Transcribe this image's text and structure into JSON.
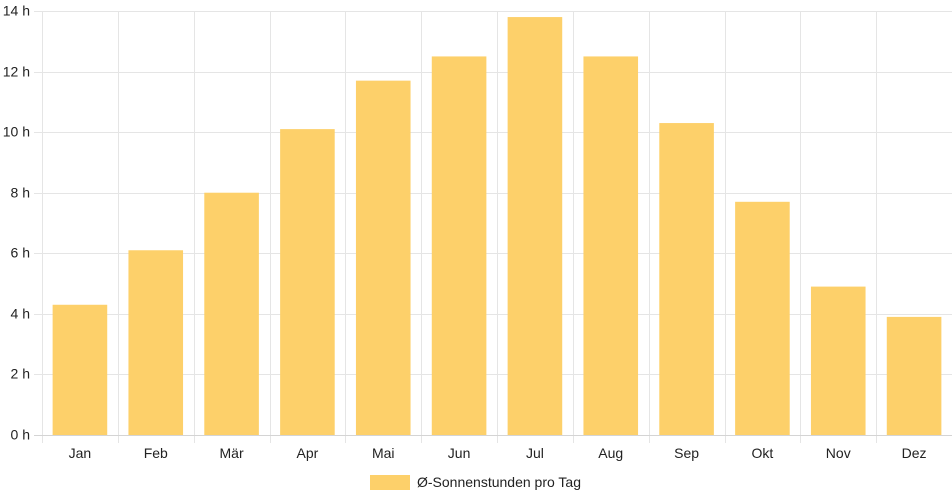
{
  "chart_data": {
    "type": "bar",
    "categories": [
      "Jan",
      "Feb",
      "Mär",
      "Apr",
      "Mai",
      "Jun",
      "Jul",
      "Aug",
      "Sep",
      "Okt",
      "Nov",
      "Dez"
    ],
    "series": [
      {
        "name": "Ø-Sonnenstunden pro Tag",
        "values": [
          4.3,
          6.1,
          8.0,
          10.1,
          11.7,
          12.5,
          13.8,
          12.5,
          10.3,
          7.7,
          4.9,
          3.9
        ]
      }
    ],
    "ylim": [
      0,
      14
    ],
    "yticks": [
      0,
      2,
      4,
      6,
      8,
      10,
      12,
      14
    ],
    "ytick_labels": [
      "0 h",
      "2 h",
      "4 h",
      "6 h",
      "8 h",
      "10 h",
      "12 h",
      "14 h"
    ],
    "grid": true,
    "legend_position": "bottom",
    "colors": {
      "bar": "#fdd06a",
      "grid": "#e5e5e5",
      "text": "#222222"
    }
  }
}
